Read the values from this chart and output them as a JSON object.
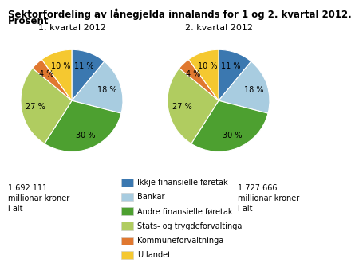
{
  "title_line1": "Sektorfordeling av lånegjelda innalands for 1 og 2. kvartal 2012.",
  "title_line2": "Prosent",
  "pie1_title": "1. kvartal 2012",
  "pie2_title": "2. kvartal 2012",
  "pie1_note": "1 692 111\nmillionar kroner\ni alt",
  "pie2_note": "1 727 666\nmillionar kroner\ni alt",
  "values": [
    11,
    18,
    30,
    27,
    4,
    10
  ],
  "colors": [
    "#3b78b0",
    "#a8cce0",
    "#4da030",
    "#b0cc60",
    "#e07830",
    "#f5c830"
  ],
  "labels": [
    "Ikkje finansielle føretak",
    "Bankar",
    "Andre finansielle føretak",
    "Stats- og trygdeforvaltinga",
    "Kommuneforvaltninga",
    "Utlandet"
  ],
  "background_color": "#ffffff",
  "title_fontsize": 8.5,
  "subtitle_fontsize": 8.5,
  "pie_title_fontsize": 8,
  "label_fontsize": 7,
  "note_fontsize": 7,
  "legend_fontsize": 7
}
